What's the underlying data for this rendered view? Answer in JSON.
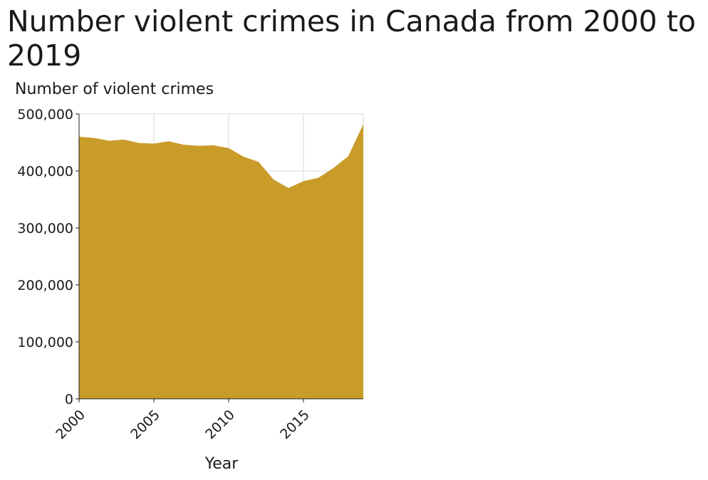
{
  "chart_data": {
    "type": "area",
    "title": "Number violent crimes in Canada from 2000 to 2019",
    "xlabel": "Year",
    "ylabel": "Number of violent crimes",
    "xlim": [
      2000,
      2019
    ],
    "ylim": [
      0,
      500000
    ],
    "x_ticks": [
      2000,
      2005,
      2010,
      2015
    ],
    "x_tick_labels": [
      "2000",
      "2005",
      "2010",
      "2015"
    ],
    "y_ticks": [
      0,
      100000,
      200000,
      300000,
      400000,
      500000
    ],
    "y_tick_labels": [
      "0",
      "100,000",
      "200,000",
      "300,000",
      "400,000",
      "500,000"
    ],
    "grid": true,
    "fill_color": "#c99c2a",
    "x": [
      2000,
      2001,
      2002,
      2003,
      2004,
      2005,
      2006,
      2007,
      2008,
      2009,
      2010,
      2011,
      2012,
      2013,
      2014,
      2015,
      2016,
      2017,
      2018,
      2019
    ],
    "values": [
      460000,
      458000,
      453000,
      455000,
      449000,
      448000,
      452000,
      446000,
      444000,
      445000,
      440000,
      425000,
      416000,
      385000,
      370000,
      382000,
      388000,
      405000,
      426000,
      482000
    ]
  }
}
